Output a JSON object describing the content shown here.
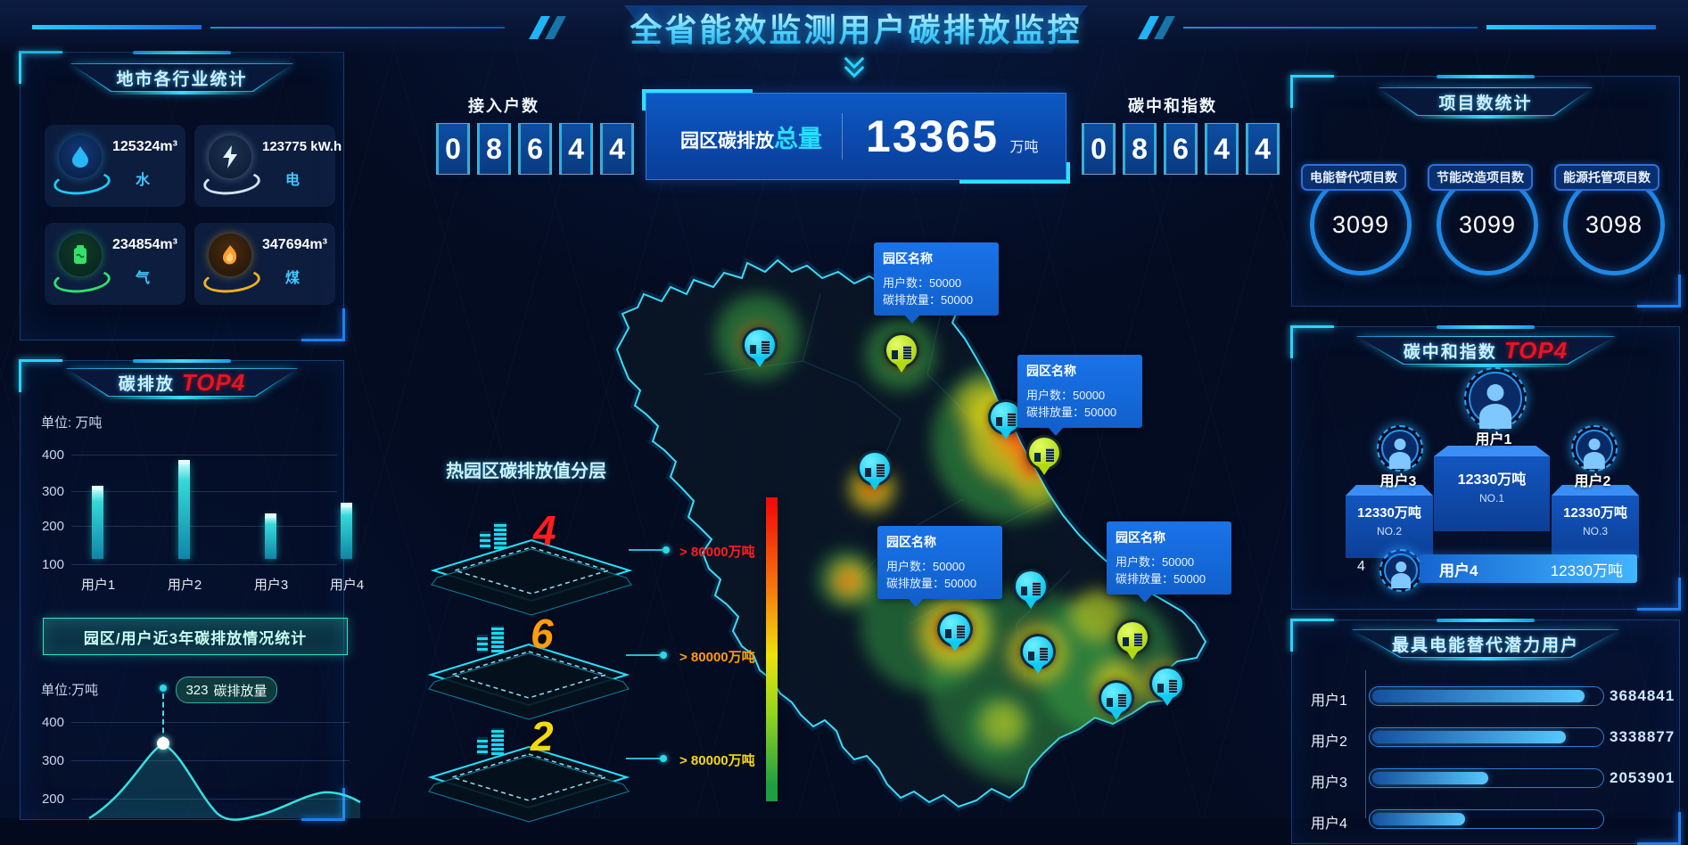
{
  "header": {
    "title": "全省能效监测用户碳排放监控"
  },
  "stats_panel": {
    "title": "地市各行业统计",
    "cards": [
      {
        "icon": "water-icon",
        "value": "125324m³",
        "label": "水"
      },
      {
        "icon": "electricity-icon",
        "value": "123775 kW.h",
        "label": "电"
      },
      {
        "icon": "gas-icon",
        "value": "234854m³",
        "label": "气"
      },
      {
        "icon": "coal-icon",
        "value": "347694m³",
        "label": "煤"
      }
    ]
  },
  "access": {
    "label": "接入户数",
    "digits": [
      "0",
      "8",
      "6",
      "4",
      "4"
    ]
  },
  "total": {
    "label": "园区碳排放",
    "highlight": "总量",
    "value": "13365",
    "unit": "万吨"
  },
  "neutral": {
    "label": "碳中和指数",
    "digits": [
      "0",
      "8",
      "6",
      "4",
      "4"
    ]
  },
  "projects": {
    "title": "项目数统计",
    "items": [
      {
        "label": "电能替代项目数",
        "value": "3099"
      },
      {
        "label": "节能改造项目数",
        "value": "3099"
      },
      {
        "label": "能源托管项目数",
        "value": "3098"
      }
    ]
  },
  "emission_top": {
    "title": "碳排放",
    "badge": "TOP4",
    "unit": "单位: 万吨",
    "yticks": [
      "400",
      "300",
      "200",
      "100"
    ],
    "categories": [
      "用户1",
      "用户2",
      "用户3",
      "用户4"
    ]
  },
  "history_button": {
    "label": "园区/用户近3年碳排放情况统计"
  },
  "trend": {
    "unit": "单位:万吨",
    "tooltip_value": "323",
    "tooltip_label": "碳排放量",
    "yticks": [
      "400",
      "300",
      "200"
    ]
  },
  "layers": {
    "title": "热园区碳排放值分层",
    "items": [
      {
        "count": "4",
        "threshold": "> 80000万吨",
        "color": "#ff1d1d"
      },
      {
        "count": "6",
        "threshold": "> 80000万吨",
        "color": "#ff9d0a"
      },
      {
        "count": "2",
        "threshold": "> 80000万吨",
        "color": "#f5d90a"
      }
    ]
  },
  "map": {
    "tooltip": {
      "title": "园区名称",
      "users_label": "用户数：",
      "users_value": "50000",
      "emission_label": "碳排放量：",
      "emission_value": "50000"
    }
  },
  "neutral_top": {
    "title": "碳中和指数",
    "badge": "TOP4",
    "first": {
      "user": "用户1",
      "value": "12330万吨",
      "rank": "NO.1"
    },
    "second": {
      "user": "用户3",
      "value": "12330万吨",
      "rank": "NO.2"
    },
    "third": {
      "user": "用户2",
      "value": "12330万吨",
      "rank": "NO.3"
    },
    "fourth": {
      "index": "4",
      "user": "用户4",
      "value": "12330万吨"
    }
  },
  "potential": {
    "title": "最具电能替代潜力用户",
    "rows": [
      {
        "user": "用户1",
        "value": "3684841",
        "pct": 93
      },
      {
        "user": "用户2",
        "value": "3338877",
        "pct": 85
      },
      {
        "user": "用户3",
        "value": "2053901",
        "pct": 52
      },
      {
        "user": "用户4",
        "value": "",
        "pct": 42
      }
    ]
  },
  "chart_data": [
    {
      "type": "bar",
      "title": "碳排放 TOP4",
      "ylabel": "万吨",
      "categories": [
        "用户1",
        "用户2",
        "用户3",
        "用户4"
      ],
      "values": [
        290,
        360,
        215,
        245
      ],
      "ylim": [
        100,
        400
      ],
      "yticks": [
        100,
        200,
        300,
        400
      ],
      "grid": true,
      "legend_position": "none"
    },
    {
      "type": "area",
      "title": "园区/用户近3年碳排放情况统计",
      "ylabel": "万吨",
      "annotated_point": {
        "value": 323,
        "label": "碳排放量"
      },
      "yticks": [
        200,
        300,
        400
      ],
      "note": "curve peaks at 323 then dips, secondary bump near 200; x-axis clipped at screen edge"
    },
    {
      "type": "bar",
      "title": "最具电能替代潜力用户",
      "categories": [
        "用户1",
        "用户2",
        "用户3"
      ],
      "values": [
        3684841,
        3338877,
        2053901
      ],
      "orientation": "horizontal"
    }
  ]
}
